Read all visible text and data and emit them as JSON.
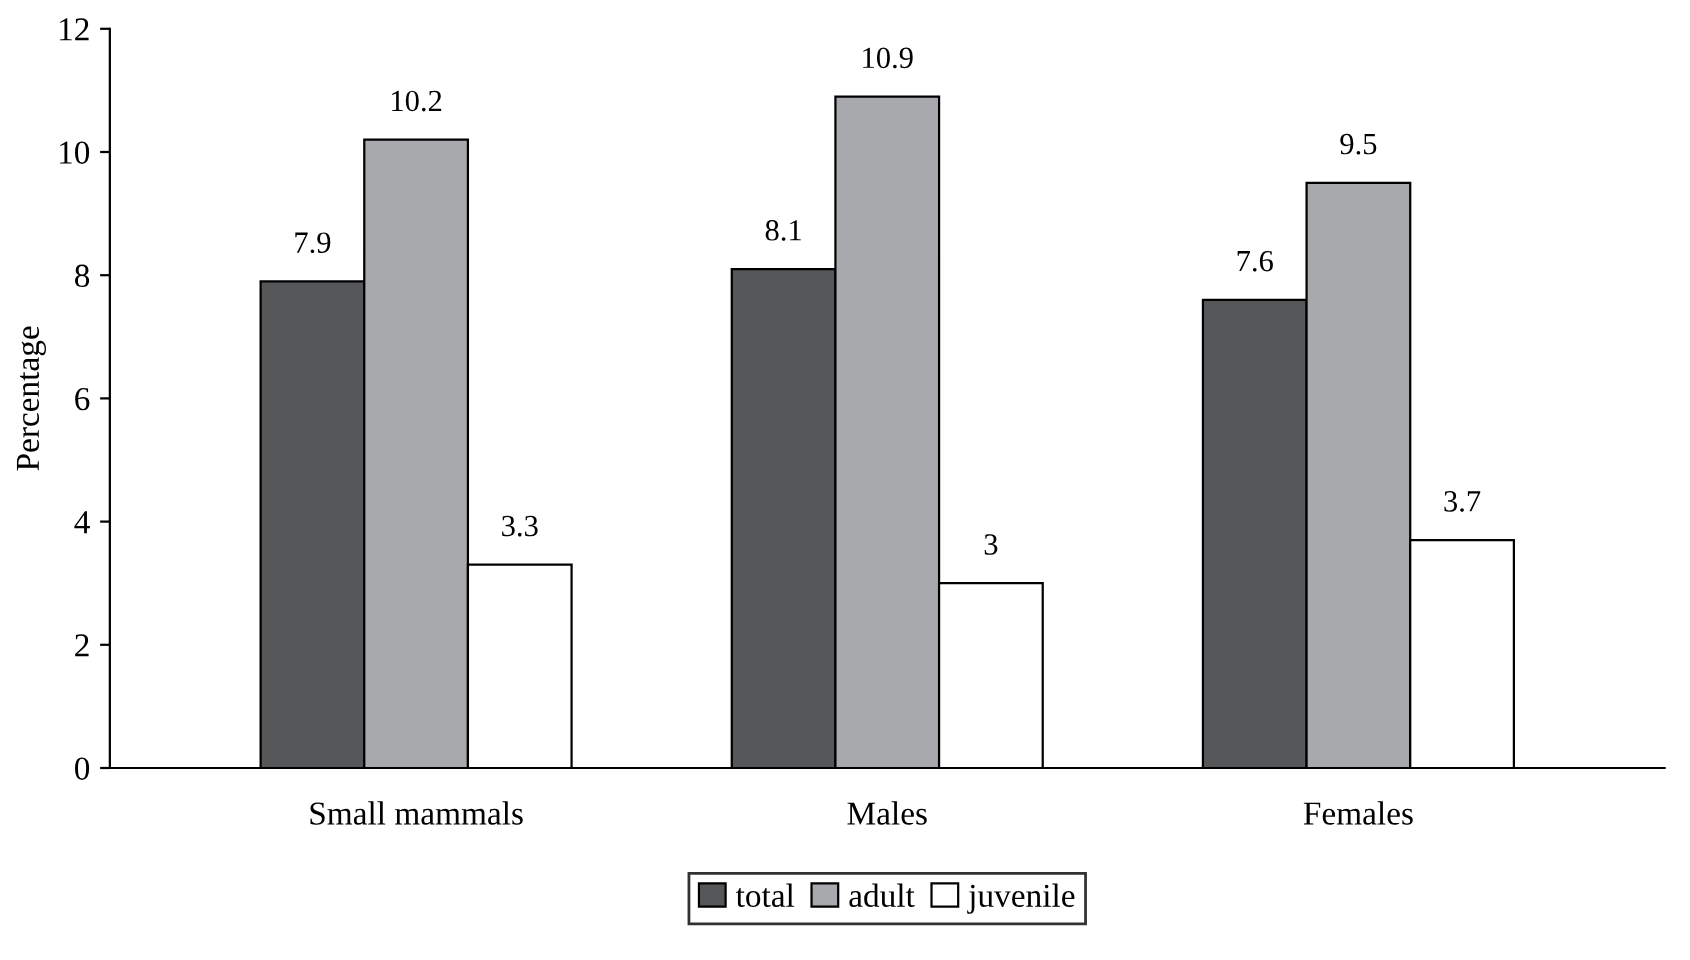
{
  "chart_data": {
    "type": "bar",
    "ylabel": "Percentage",
    "categories": [
      "Small mammals",
      "Males",
      "Females"
    ],
    "series": [
      {
        "name": "total",
        "color": "#555759",
        "values": [
          7.9,
          8.1,
          7.6
        ]
      },
      {
        "name": "adult",
        "color": "#a7a9ac",
        "values": [
          10.2,
          10.9,
          9.5
        ]
      },
      {
        "name": "juvenile",
        "color": "#ffffff",
        "values": [
          3.3,
          3,
          3.7
        ]
      }
    ],
    "ylim": [
      0,
      12
    ],
    "yticks": [
      0,
      2,
      4,
      6,
      8,
      10,
      12
    ],
    "grid": false,
    "legend": "bottom",
    "data_labels": true
  }
}
